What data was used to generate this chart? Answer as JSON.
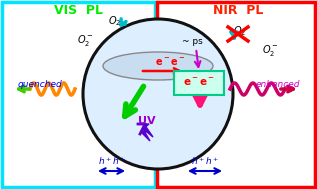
{
  "fig_width": 3.17,
  "fig_height": 1.89,
  "dpi": 100,
  "bg_color": "#ffffff",
  "left_box_color": "#00e5ff",
  "right_box_color": "#ff0000",
  "sphere_fill": "#ddeeff",
  "sphere_edge": "#111111",
  "vis_pl_text": "VIS  PL",
  "vis_pl_color": "#00ee00",
  "nir_pl_text": "NIR  PL",
  "nir_pl_color": "#ff2200",
  "quenched_text": "quenched",
  "quenched_color": "#0000ff",
  "enhanced_text": "enhanced",
  "enhanced_color": "#cc00cc",
  "uv_text": "UV",
  "uv_color": "#9900cc",
  "ps_text": "~ ps",
  "ps_color": "#000000",
  "ee_text_left": "e⁻e⁻",
  "ee_text_right": "e⁻ e⁻",
  "ee_color_left": "#ff0000",
  "ee_color_right": "#ff0000",
  "hh_text_left": "h⁺ h⁺",
  "hh_text_right": "h⁺ h⁺",
  "hh_color": "#0000ff"
}
